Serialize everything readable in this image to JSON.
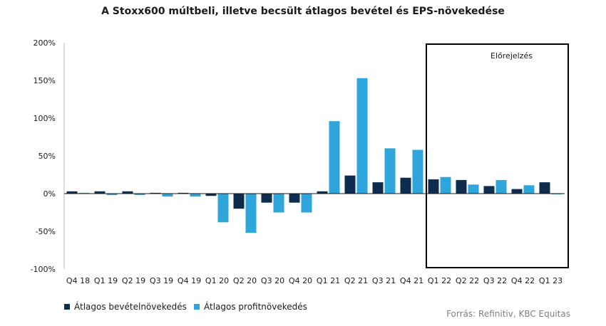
{
  "chart_data": {
    "type": "bar",
    "title": "A Stoxx600 múltbeli, illetve becsült átlagos bevétel és EPS-növekedése",
    "categories": [
      "Q4 18",
      "Q1 19",
      "Q2 19",
      "Q3 19",
      "Q4 19",
      "Q1 20",
      "Q2 20",
      "Q3 20",
      "Q4 20",
      "Q1 21",
      "Q2 21",
      "Q3 21",
      "Q4 21",
      "Q1 22",
      "Q2 22",
      "Q3 22",
      "Q4 22",
      "Q1 23"
    ],
    "series": [
      {
        "name": "Átlagos bevételnövekedés",
        "color": "#0d2c4e",
        "values": [
          3,
          3,
          3,
          1,
          1,
          -3,
          -20,
          -12,
          -12,
          3,
          24,
          15,
          21,
          19,
          18,
          10,
          6,
          15
        ]
      },
      {
        "name": "Átlagos profitnövekedés",
        "color": "#2ea6dc",
        "values": [
          1,
          -2,
          -2,
          -4,
          -4,
          -38,
          -52,
          -25,
          -25,
          96,
          153,
          60,
          58,
          22,
          12,
          18,
          11,
          0
        ]
      }
    ],
    "yticks": [
      "200%",
      "150%",
      "100%",
      "50%",
      "0%",
      "-50%",
      "-100%"
    ],
    "ylim": [
      -100,
      200
    ],
    "forecast_label": "Előrejelzés",
    "forecast_start_category": "Q1 22",
    "source": "Forrás: Refinitiv, KBC Equitas"
  }
}
